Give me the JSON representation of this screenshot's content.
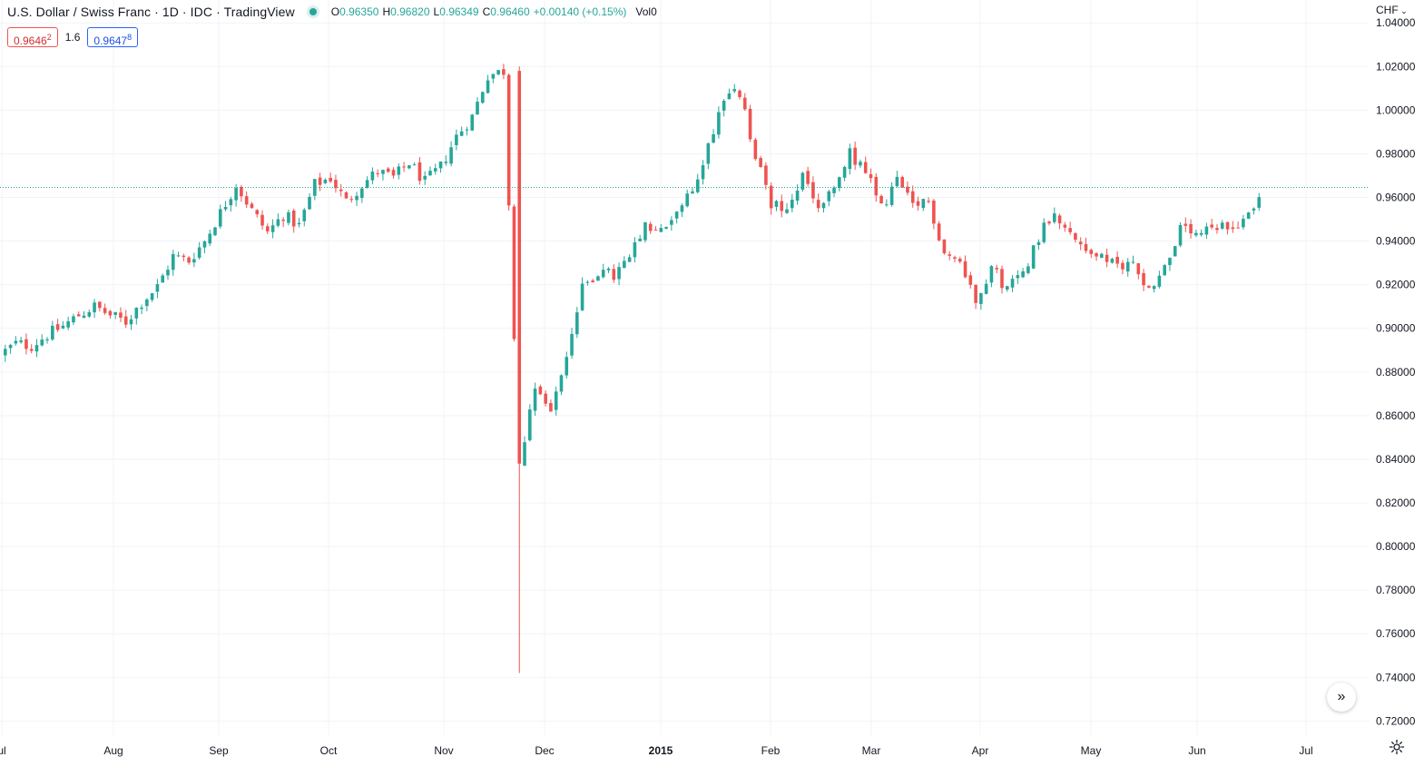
{
  "legend": {
    "title": "U.S. Dollar / Swiss Franc · 1D · IDC · TradingView",
    "o_key": "O",
    "o": "0.96350",
    "h_key": "H",
    "h": "0.96820",
    "l_key": "L",
    "l": "0.96349",
    "c_key": "C",
    "c": "0.96460",
    "change": "+0.00140 (+0.15%)",
    "vol_key": "Vol",
    "vol": "0"
  },
  "quotes": {
    "bid": "0.9646",
    "bid_sup": "2",
    "spread": "1.6",
    "ask": "0.9647",
    "ask_sup": "8"
  },
  "currency_label": "CHF",
  "colors": {
    "up": "#26a69a",
    "down": "#ef5350",
    "grid": "#f0f3fa",
    "last_price_line": "#26a69a"
  },
  "chart_data": {
    "type": "candlestick",
    "title": "U.S. Dollar / Swiss Franc · 1D · IDC · TradingView",
    "y_unit": "CHF",
    "y_ticks": [
      "1.04000",
      "1.02000",
      "1.00000",
      "0.98000",
      "0.96000",
      "0.94000",
      "0.92000",
      "0.90000",
      "0.88000",
      "0.86000",
      "0.84000",
      "0.82000",
      "0.80000",
      "0.78000",
      "0.76000",
      "0.74000",
      "0.72000"
    ],
    "ylim": [
      0.7135,
      1.0505
    ],
    "x_ticks": [
      {
        "label": "ul",
        "bold": false
      },
      {
        "label": "Aug",
        "bold": false
      },
      {
        "label": "Sep",
        "bold": false
      },
      {
        "label": "Oct",
        "bold": false
      },
      {
        "label": "Nov",
        "bold": false
      },
      {
        "label": "Dec",
        "bold": false
      },
      {
        "label": "2015",
        "bold": true
      },
      {
        "label": "Feb",
        "bold": false
      },
      {
        "label": "Mar",
        "bold": false
      },
      {
        "label": "Apr",
        "bold": false
      },
      {
        "label": "May",
        "bold": false
      },
      {
        "label": "Jun",
        "bold": false
      },
      {
        "label": "Jul",
        "bold": false
      }
    ],
    "last_price": 0.9646,
    "grid": true,
    "anchors": [
      [
        0.888,
        0.888
      ],
      [
        0.893,
        0.896
      ],
      [
        0.892,
        0.89
      ],
      [
        0.897,
        0.899
      ],
      [
        0.901,
        0.903
      ],
      [
        0.906,
        0.909
      ],
      [
        0.91,
        0.91
      ],
      [
        0.906,
        0.908
      ],
      [
        0.903,
        0.904
      ],
      [
        0.912,
        0.915
      ],
      [
        0.919,
        0.92
      ],
      [
        0.933,
        0.935
      ],
      [
        0.931,
        0.934
      ],
      [
        0.94,
        0.942
      ],
      [
        0.953,
        0.957
      ],
      [
        0.966,
        0.958
      ],
      [
        0.954,
        0.952
      ],
      [
        0.944,
        0.942
      ],
      [
        0.952,
        0.95
      ],
      [
        0.947,
        0.948
      ],
      [
        0.966,
        0.969
      ],
      [
        0.969,
        0.964
      ],
      [
        0.958,
        0.96
      ],
      [
        0.966,
        0.962
      ],
      [
        0.972,
        0.975
      ],
      [
        0.969,
        0.967
      ],
      [
        0.976,
        0.975
      ],
      [
        0.967,
        0.958
      ],
      [
        0.974,
        0.98
      ],
      [
        0.988,
        0.988
      ],
      [
        0.997,
        1.002
      ],
      [
        1.016,
        1.018
      ],
      [
        1.018,
        1.016
      ],
      [
        0.838,
        0.838
      ],
      [
        0.875,
        0.876
      ],
      [
        0.862,
        0.874
      ],
      [
        0.888,
        0.9
      ],
      [
        0.918,
        0.924
      ],
      [
        0.926,
        0.925
      ],
      [
        0.924,
        0.926
      ],
      [
        0.932,
        0.934
      ],
      [
        0.946,
        0.948
      ],
      [
        0.944,
        0.945
      ],
      [
        0.954,
        0.956
      ],
      [
        0.962,
        0.966
      ],
      [
        0.984,
        0.992
      ],
      [
        1.006,
        1.006
      ],
      [
        1.008,
        1.004
      ],
      [
        0.978,
        0.972
      ],
      [
        0.958,
        0.956
      ],
      [
        0.952,
        0.955
      ],
      [
        0.97,
        0.967
      ],
      [
        0.955,
        0.953
      ],
      [
        0.963,
        0.966
      ],
      [
        0.98,
        0.982
      ],
      [
        0.972,
        0.966
      ],
      [
        0.955,
        0.952
      ],
      [
        0.968,
        0.966
      ],
      [
        0.955,
        0.952
      ],
      [
        0.958,
        0.95
      ],
      [
        0.935,
        0.933
      ],
      [
        0.93,
        0.926
      ],
      [
        0.914,
        0.912
      ],
      [
        0.928,
        0.932
      ],
      [
        0.918,
        0.914
      ],
      [
        0.926,
        0.93
      ],
      [
        0.942,
        0.944
      ],
      [
        0.955,
        0.951
      ],
      [
        0.942,
        0.936
      ],
      [
        0.937,
        0.934
      ],
      [
        0.932,
        0.929
      ],
      [
        0.928,
        0.928
      ],
      [
        0.93,
        0.928
      ],
      [
        0.918,
        0.917
      ],
      [
        0.928,
        0.932
      ],
      [
        0.945,
        0.948
      ],
      [
        0.942,
        0.935
      ],
      [
        0.945,
        0.947
      ],
      [
        0.946,
        0.944
      ],
      [
        0.95,
        0.952
      ],
      [
        0.96,
        0.962
      ]
    ],
    "crash_candle": {
      "open": 1.018,
      "high": 1.02,
      "low": 0.742,
      "close": 0.838
    }
  }
}
